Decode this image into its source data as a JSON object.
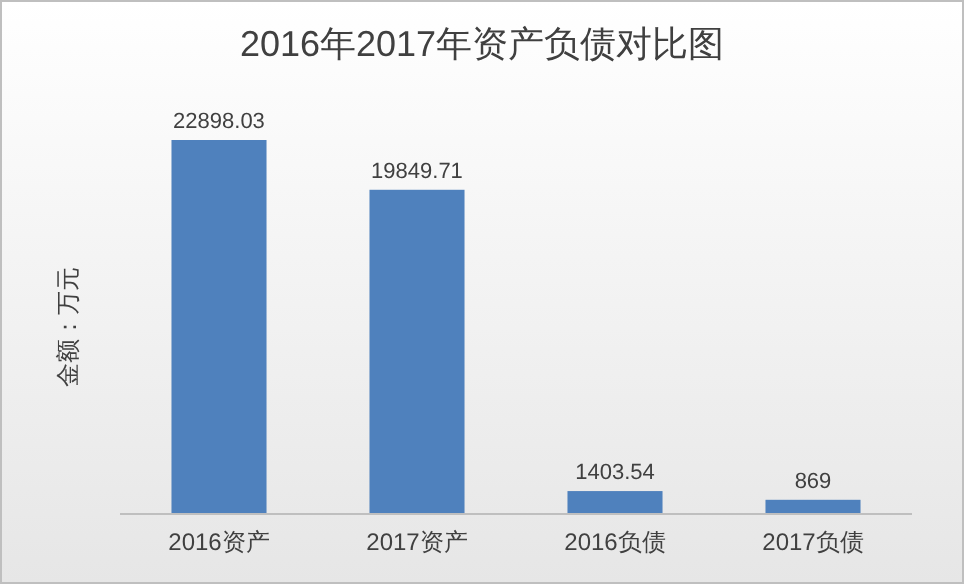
{
  "chart_data": {
    "type": "bar",
    "title": "2016年2017年资产负债对比图",
    "ylabel": "金额：万元",
    "categories": [
      "2016资产",
      "2017资产",
      "2016负债",
      "2017负债"
    ],
    "values": [
      22898.03,
      19849.71,
      1403.54,
      869
    ],
    "color": "#4f81bd",
    "data_labels": true
  }
}
